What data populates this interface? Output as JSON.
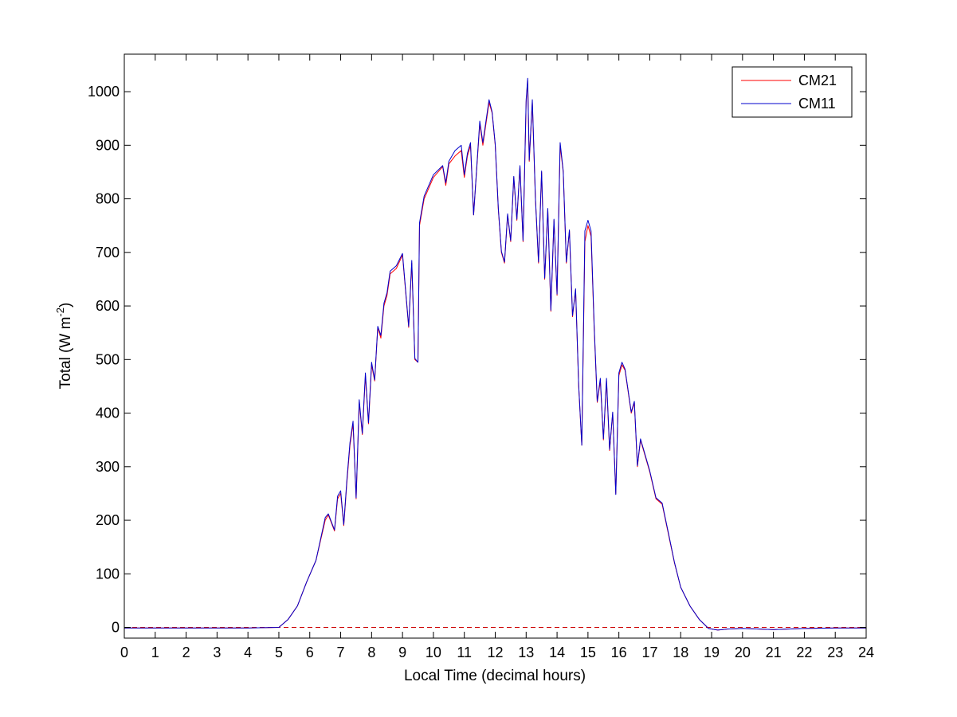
{
  "chart_data": {
    "type": "line",
    "xlabel": "Local Time (decimal hours)",
    "ylabel": {
      "prefix": "Total (W m",
      "superscript": "-2",
      "suffix": ")"
    },
    "xlim": [
      0,
      24
    ],
    "ylim": [
      -20,
      1070
    ],
    "xticks": [
      0,
      1,
      2,
      3,
      4,
      5,
      6,
      7,
      8,
      9,
      10,
      11,
      12,
      13,
      14,
      15,
      16,
      17,
      18,
      19,
      20,
      21,
      22,
      23,
      24
    ],
    "yticks": [
      0,
      100,
      200,
      300,
      400,
      500,
      600,
      700,
      800,
      900,
      1000
    ],
    "grid": false,
    "legend_position": "top-right",
    "reference_line": {
      "y": 0,
      "color": "#cc0000",
      "style": "dashed"
    },
    "colors": {
      "CM21": "#ff0000",
      "CM11": "#0000cc"
    },
    "series": [
      {
        "name": "CM21",
        "x": [
          0,
          2,
          4,
          5,
          5.3,
          5.6,
          5.9,
          6.2,
          6.5,
          6.6,
          6.8,
          6.9,
          7.0,
          7.1,
          7.2,
          7.3,
          7.4,
          7.5,
          7.6,
          7.7,
          7.8,
          7.9,
          8.0,
          8.1,
          8.2,
          8.3,
          8.4,
          8.5,
          8.6,
          8.8,
          9.0,
          9.2,
          9.3,
          9.4,
          9.5,
          9.55,
          9.7,
          10.0,
          10.3,
          10.4,
          10.5,
          10.7,
          10.9,
          11.0,
          11.1,
          11.2,
          11.3,
          11.5,
          11.6,
          11.8,
          11.9,
          12.0,
          12.1,
          12.2,
          12.3,
          12.4,
          12.5,
          12.6,
          12.7,
          12.8,
          12.9,
          13.0,
          13.05,
          13.1,
          13.2,
          13.3,
          13.4,
          13.5,
          13.6,
          13.7,
          13.8,
          13.9,
          14.0,
          14.1,
          14.2,
          14.3,
          14.4,
          14.5,
          14.6,
          14.7,
          14.8,
          14.9,
          15.0,
          15.1,
          15.2,
          15.3,
          15.4,
          15.5,
          15.6,
          15.7,
          15.8,
          15.9,
          16.0,
          16.1,
          16.2,
          16.4,
          16.5,
          16.6,
          16.7,
          16.8,
          17.0,
          17.2,
          17.4,
          17.6,
          17.8,
          18.0,
          18.3,
          18.6,
          18.9,
          19.2,
          19.5,
          20,
          21,
          22,
          23,
          24
        ],
        "values": [
          -1,
          -1,
          -1,
          0,
          15,
          40,
          85,
          125,
          200,
          210,
          180,
          240,
          250,
          190,
          270,
          340,
          380,
          240,
          420,
          360,
          470,
          380,
          490,
          460,
          560,
          540,
          600,
          620,
          660,
          670,
          695,
          560,
          680,
          500,
          495,
          750,
          800,
          840,
          860,
          825,
          865,
          880,
          890,
          840,
          880,
          900,
          770,
          940,
          900,
          980,
          960,
          900,
          780,
          700,
          680,
          770,
          720,
          840,
          760,
          860,
          720,
          980,
          1020,
          870,
          980,
          800,
          680,
          850,
          650,
          780,
          590,
          760,
          620,
          900,
          850,
          680,
          740,
          580,
          630,
          450,
          340,
          720,
          750,
          730,
          560,
          420,
          460,
          350,
          460,
          330,
          400,
          250,
          470,
          490,
          480,
          400,
          420,
          300,
          350,
          330,
          290,
          240,
          230,
          175,
          120,
          75,
          40,
          15,
          -2,
          -5,
          -3,
          -2,
          -4,
          -2,
          -1,
          -1
        ]
      },
      {
        "name": "CM11",
        "x": [
          0,
          2,
          4,
          5,
          5.3,
          5.6,
          5.9,
          6.2,
          6.5,
          6.6,
          6.8,
          6.9,
          7.0,
          7.1,
          7.2,
          7.3,
          7.4,
          7.5,
          7.6,
          7.7,
          7.8,
          7.9,
          8.0,
          8.1,
          8.2,
          8.3,
          8.4,
          8.5,
          8.6,
          8.8,
          9.0,
          9.2,
          9.3,
          9.4,
          9.5,
          9.55,
          9.7,
          10.0,
          10.3,
          10.4,
          10.5,
          10.7,
          10.9,
          11.0,
          11.1,
          11.2,
          11.3,
          11.5,
          11.6,
          11.8,
          11.9,
          12.0,
          12.1,
          12.2,
          12.3,
          12.4,
          12.5,
          12.6,
          12.7,
          12.8,
          12.9,
          13.0,
          13.05,
          13.1,
          13.2,
          13.3,
          13.4,
          13.5,
          13.6,
          13.7,
          13.8,
          13.9,
          14.0,
          14.1,
          14.2,
          14.3,
          14.4,
          14.5,
          14.6,
          14.7,
          14.8,
          14.9,
          15.0,
          15.1,
          15.2,
          15.3,
          15.4,
          15.5,
          15.6,
          15.7,
          15.8,
          15.9,
          16.0,
          16.1,
          16.2,
          16.4,
          16.5,
          16.6,
          16.7,
          16.8,
          17.0,
          17.2,
          17.4,
          17.6,
          17.8,
          18.0,
          18.3,
          18.6,
          18.9,
          19.2,
          19.5,
          20,
          21,
          22,
          23,
          24
        ],
        "values": [
          -1,
          -1,
          -1,
          0,
          15,
          40,
          85,
          125,
          205,
          212,
          182,
          245,
          255,
          192,
          275,
          345,
          385,
          242,
          425,
          362,
          475,
          382,
          495,
          462,
          562,
          545,
          605,
          625,
          665,
          675,
          698,
          562,
          685,
          502,
          495,
          755,
          805,
          845,
          862,
          830,
          870,
          890,
          900,
          845,
          885,
          905,
          770,
          945,
          905,
          985,
          962,
          902,
          782,
          702,
          682,
          772,
          722,
          842,
          762,
          862,
          722,
          985,
          1025,
          872,
          985,
          802,
          682,
          852,
          652,
          782,
          592,
          762,
          622,
          905,
          852,
          682,
          742,
          582,
          632,
          452,
          340,
          740,
          760,
          740,
          565,
          422,
          465,
          352,
          465,
          332,
          402,
          248,
          475,
          495,
          482,
          402,
          422,
          302,
          352,
          332,
          292,
          242,
          232,
          177,
          121,
          75,
          40,
          15,
          -2,
          -5,
          -3,
          -2,
          -4,
          -2,
          -1,
          -1
        ]
      }
    ]
  }
}
